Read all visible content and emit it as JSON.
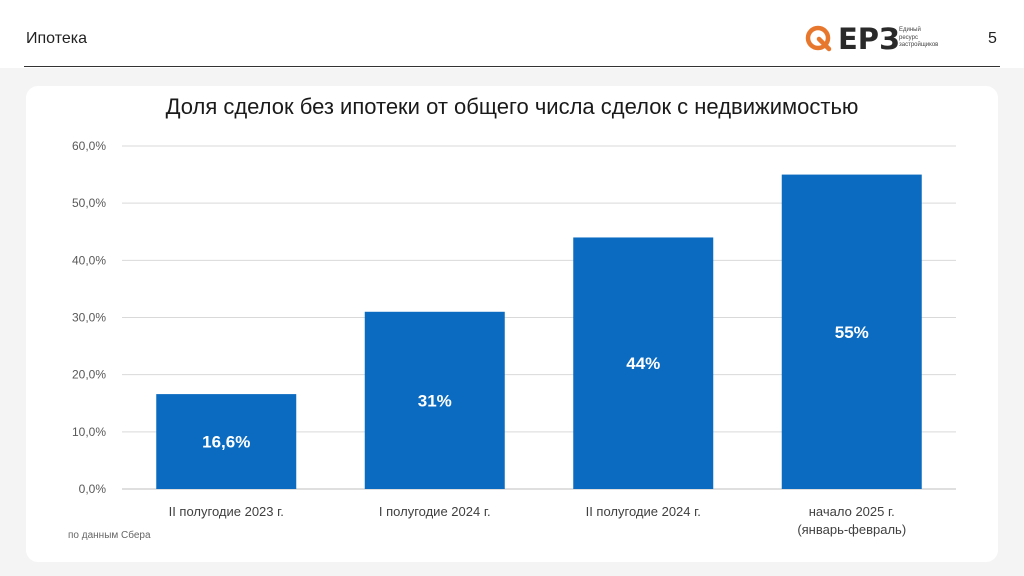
{
  "header": {
    "section_title": "Ипотека",
    "page_number": "5",
    "logo": {
      "name": "ЕРЗ",
      "subtitle_lines": [
        "Единый",
        "ресурс",
        "застройщиков"
      ],
      "accent_color": "#e8772e"
    }
  },
  "chart_data": {
    "type": "bar",
    "title": "Доля сделок без ипотеки от общего числа сделок с недвижимостью",
    "categories": [
      [
        "II полугодие 2023 г."
      ],
      [
        "I полугодие 2024 г."
      ],
      [
        "II полугодие 2024 г."
      ],
      [
        "начало 2025 г.",
        "(январь-февраль)"
      ]
    ],
    "values": [
      16.6,
      31,
      44,
      55
    ],
    "data_labels": [
      "16,6%",
      "31%",
      "44%",
      "55%"
    ],
    "y_ticks": [
      "0,0%",
      "10,0%",
      "20,0%",
      "30,0%",
      "40,0%",
      "50,0%",
      "60,0%"
    ],
    "ylim": [
      0,
      60
    ],
    "grid": true,
    "bar_color": "#0b6bc0"
  },
  "footer": {
    "source": "по данным Сбера"
  }
}
